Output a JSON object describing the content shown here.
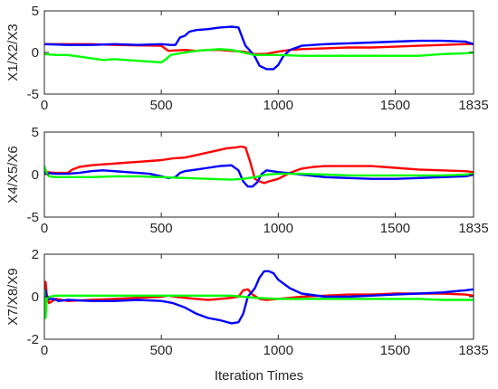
{
  "chart_data": [
    {
      "type": "line",
      "ylabel": "X1/X2/X3",
      "xlabel": "",
      "xlim": [
        0,
        1835
      ],
      "ylim": [
        -5,
        5
      ],
      "xticks": [
        "0",
        "500",
        "1000",
        "1500",
        "1835"
      ],
      "yticks": [
        "-5",
        "0",
        "5"
      ],
      "series": [
        {
          "color": "#ff0000",
          "x": [
            0,
            100,
            200,
            300,
            400,
            500,
            530,
            600,
            650,
            700,
            750,
            800,
            850,
            900,
            950,
            1000,
            1050,
            1100,
            1200,
            1300,
            1400,
            1500,
            1600,
            1700,
            1800,
            1835
          ],
          "y": [
            1.0,
            1.0,
            1.0,
            0.9,
            0.85,
            0.8,
            0.2,
            0.3,
            0.2,
            0.3,
            0.3,
            0.2,
            0.1,
            -0.2,
            -0.15,
            0.1,
            0.3,
            0.4,
            0.5,
            0.6,
            0.6,
            0.7,
            0.8,
            0.9,
            1.0,
            1.0
          ]
        },
        {
          "color": "#0000ff",
          "x": [
            0,
            100,
            200,
            300,
            400,
            500,
            540,
            560,
            580,
            600,
            620,
            650,
            700,
            750,
            800,
            830,
            850,
            860,
            880,
            900,
            920,
            950,
            980,
            1000,
            1020,
            1050,
            1100,
            1200,
            1300,
            1400,
            1500,
            1600,
            1700,
            1800,
            1835
          ],
          "y": [
            1.0,
            0.9,
            0.9,
            1.0,
            0.9,
            1.0,
            0.9,
            0.9,
            1.8,
            2.0,
            2.5,
            2.7,
            2.8,
            3.0,
            3.1,
            3.0,
            1.5,
            0.8,
            0.2,
            -0.5,
            -1.6,
            -2.0,
            -2.0,
            -1.5,
            -0.5,
            0.3,
            0.8,
            1.0,
            1.1,
            1.2,
            1.3,
            1.4,
            1.4,
            1.3,
            1.0
          ]
        },
        {
          "color": "#00ff00",
          "x": [
            0,
            50,
            100,
            150,
            200,
            250,
            300,
            350,
            400,
            450,
            500,
            520,
            540,
            560,
            600,
            650,
            700,
            750,
            800,
            850,
            900,
            950,
            1000,
            1100,
            1200,
            1300,
            1400,
            1500,
            1600,
            1700,
            1800,
            1835
          ],
          "y": [
            -0.2,
            -0.3,
            -0.3,
            -0.5,
            -0.7,
            -0.9,
            -0.8,
            -0.9,
            -1.0,
            -1.1,
            -1.2,
            -0.8,
            -0.3,
            -0.2,
            0.0,
            0.2,
            0.3,
            0.4,
            0.3,
            0.0,
            -0.3,
            -0.3,
            -0.3,
            -0.4,
            -0.4,
            -0.4,
            -0.4,
            -0.4,
            -0.4,
            -0.2,
            -0.1,
            0.0
          ]
        }
      ]
    },
    {
      "type": "line",
      "ylabel": "X4/X5/X6",
      "xlabel": "",
      "xlim": [
        0,
        1835
      ],
      "ylim": [
        -5,
        5
      ],
      "xticks": [
        "0",
        "500",
        "1000",
        "1500",
        "1835"
      ],
      "yticks": [
        "-5",
        "0",
        "5"
      ],
      "series": [
        {
          "color": "#ff0000",
          "x": [
            0,
            50,
            100,
            120,
            150,
            200,
            250,
            300,
            350,
            400,
            450,
            500,
            550,
            600,
            650,
            700,
            750,
            780,
            820,
            840,
            860,
            880,
            900,
            920,
            940,
            960,
            1000,
            1050,
            1100,
            1150,
            1200,
            1300,
            1400,
            1500,
            1600,
            1700,
            1800,
            1835
          ],
          "y": [
            0.3,
            0.2,
            0.2,
            0.6,
            0.9,
            1.1,
            1.2,
            1.3,
            1.4,
            1.5,
            1.6,
            1.7,
            1.9,
            2.0,
            2.3,
            2.6,
            2.9,
            3.1,
            3.2,
            3.3,
            3.2,
            1.5,
            -0.5,
            -0.8,
            -1.0,
            -0.8,
            -0.5,
            0.2,
            0.7,
            0.9,
            1.0,
            1.0,
            1.0,
            0.8,
            0.6,
            0.5,
            0.4,
            0.3
          ]
        },
        {
          "color": "#0000ff",
          "x": [
            0,
            50,
            100,
            150,
            200,
            250,
            300,
            350,
            400,
            450,
            500,
            530,
            560,
            580,
            600,
            650,
            700,
            750,
            800,
            830,
            850,
            870,
            890,
            910,
            930,
            950,
            1000,
            1100,
            1200,
            1300,
            1400,
            1500,
            1600,
            1700,
            1800,
            1835
          ],
          "y": [
            0.2,
            0.1,
            0.1,
            0.2,
            0.4,
            0.5,
            0.4,
            0.3,
            0.2,
            0.1,
            -0.2,
            -0.4,
            -0.3,
            0.2,
            0.4,
            0.6,
            0.8,
            1.0,
            1.1,
            0.5,
            -0.8,
            -1.4,
            -1.4,
            -0.9,
            0.1,
            0.5,
            0.3,
            0.0,
            -0.3,
            -0.4,
            -0.5,
            -0.5,
            -0.4,
            -0.3,
            -0.2,
            0.0
          ]
        },
        {
          "color": "#00ff00",
          "x": [
            0,
            10,
            20,
            50,
            100,
            200,
            300,
            400,
            500,
            600,
            700,
            800,
            850,
            900,
            950,
            1000,
            1100,
            1200,
            1300,
            1400,
            1500,
            1600,
            1700,
            1800,
            1835
          ],
          "y": [
            1.0,
            0.2,
            -0.2,
            -0.3,
            -0.3,
            -0.3,
            -0.2,
            -0.2,
            -0.3,
            -0.4,
            -0.5,
            -0.6,
            -0.5,
            -0.3,
            0.0,
            0.1,
            0.1,
            0.0,
            -0.1,
            -0.1,
            -0.1,
            -0.1,
            -0.1,
            0.0,
            0.1
          ]
        }
      ]
    },
    {
      "type": "line",
      "ylabel": "X7/X8/X9",
      "xlabel": "Iteration Times",
      "xlim": [
        0,
        1835
      ],
      "ylim": [
        -2,
        2
      ],
      "xticks": [
        "0",
        "500",
        "1000",
        "1500",
        "1835"
      ],
      "yticks": [
        "-2",
        "0",
        "2"
      ],
      "series": [
        {
          "color": "#ff0000",
          "x": [
            0,
            5,
            10,
            20,
            50,
            100,
            200,
            300,
            400,
            500,
            530,
            560,
            600,
            650,
            700,
            750,
            800,
            830,
            850,
            870,
            890,
            920,
            950,
            1000,
            1100,
            1200,
            1300,
            1400,
            1500,
            1600,
            1700,
            1800,
            1835
          ],
          "y": [
            0.3,
            0.7,
            0.1,
            -0.3,
            -0.1,
            -0.2,
            -0.15,
            -0.1,
            -0.05,
            0.0,
            0.05,
            0.0,
            -0.05,
            -0.1,
            -0.15,
            -0.1,
            -0.05,
            0.0,
            0.3,
            0.35,
            0.1,
            -0.1,
            -0.15,
            -0.1,
            0.0,
            0.05,
            0.1,
            0.1,
            0.15,
            0.15,
            0.15,
            0.1,
            0.05
          ]
        },
        {
          "color": "#0000ff",
          "x": [
            0,
            5,
            10,
            20,
            40,
            60,
            100,
            200,
            300,
            400,
            500,
            550,
            600,
            650,
            700,
            750,
            800,
            830,
            850,
            870,
            900,
            920,
            940,
            960,
            980,
            1000,
            1050,
            1100,
            1200,
            1300,
            1400,
            1500,
            1600,
            1700,
            1800,
            1835
          ],
          "y": [
            0.2,
            0.3,
            0.0,
            -0.1,
            -0.1,
            -0.2,
            -0.15,
            -0.2,
            -0.2,
            -0.15,
            -0.2,
            -0.3,
            -0.5,
            -0.8,
            -1.0,
            -1.1,
            -1.25,
            -1.2,
            -0.8,
            0.0,
            0.4,
            0.9,
            1.2,
            1.2,
            1.1,
            0.8,
            0.4,
            0.15,
            0.0,
            0.0,
            0.05,
            0.1,
            0.15,
            0.2,
            0.3,
            0.35
          ]
        },
        {
          "color": "#00ff00",
          "x": [
            0,
            5,
            10,
            20,
            50,
            100,
            200,
            300,
            400,
            500,
            600,
            700,
            800,
            850,
            900,
            1000,
            1100,
            1200,
            1300,
            1400,
            1500,
            1600,
            1700,
            1800,
            1835
          ],
          "y": [
            0.3,
            -1.0,
            -0.1,
            0.0,
            0.05,
            0.05,
            0.05,
            0.05,
            0.05,
            0.05,
            0.05,
            0.05,
            0.05,
            0.0,
            -0.05,
            -0.1,
            -0.1,
            -0.1,
            -0.1,
            -0.1,
            -0.1,
            -0.1,
            -0.15,
            -0.15,
            -0.15
          ]
        }
      ]
    }
  ]
}
